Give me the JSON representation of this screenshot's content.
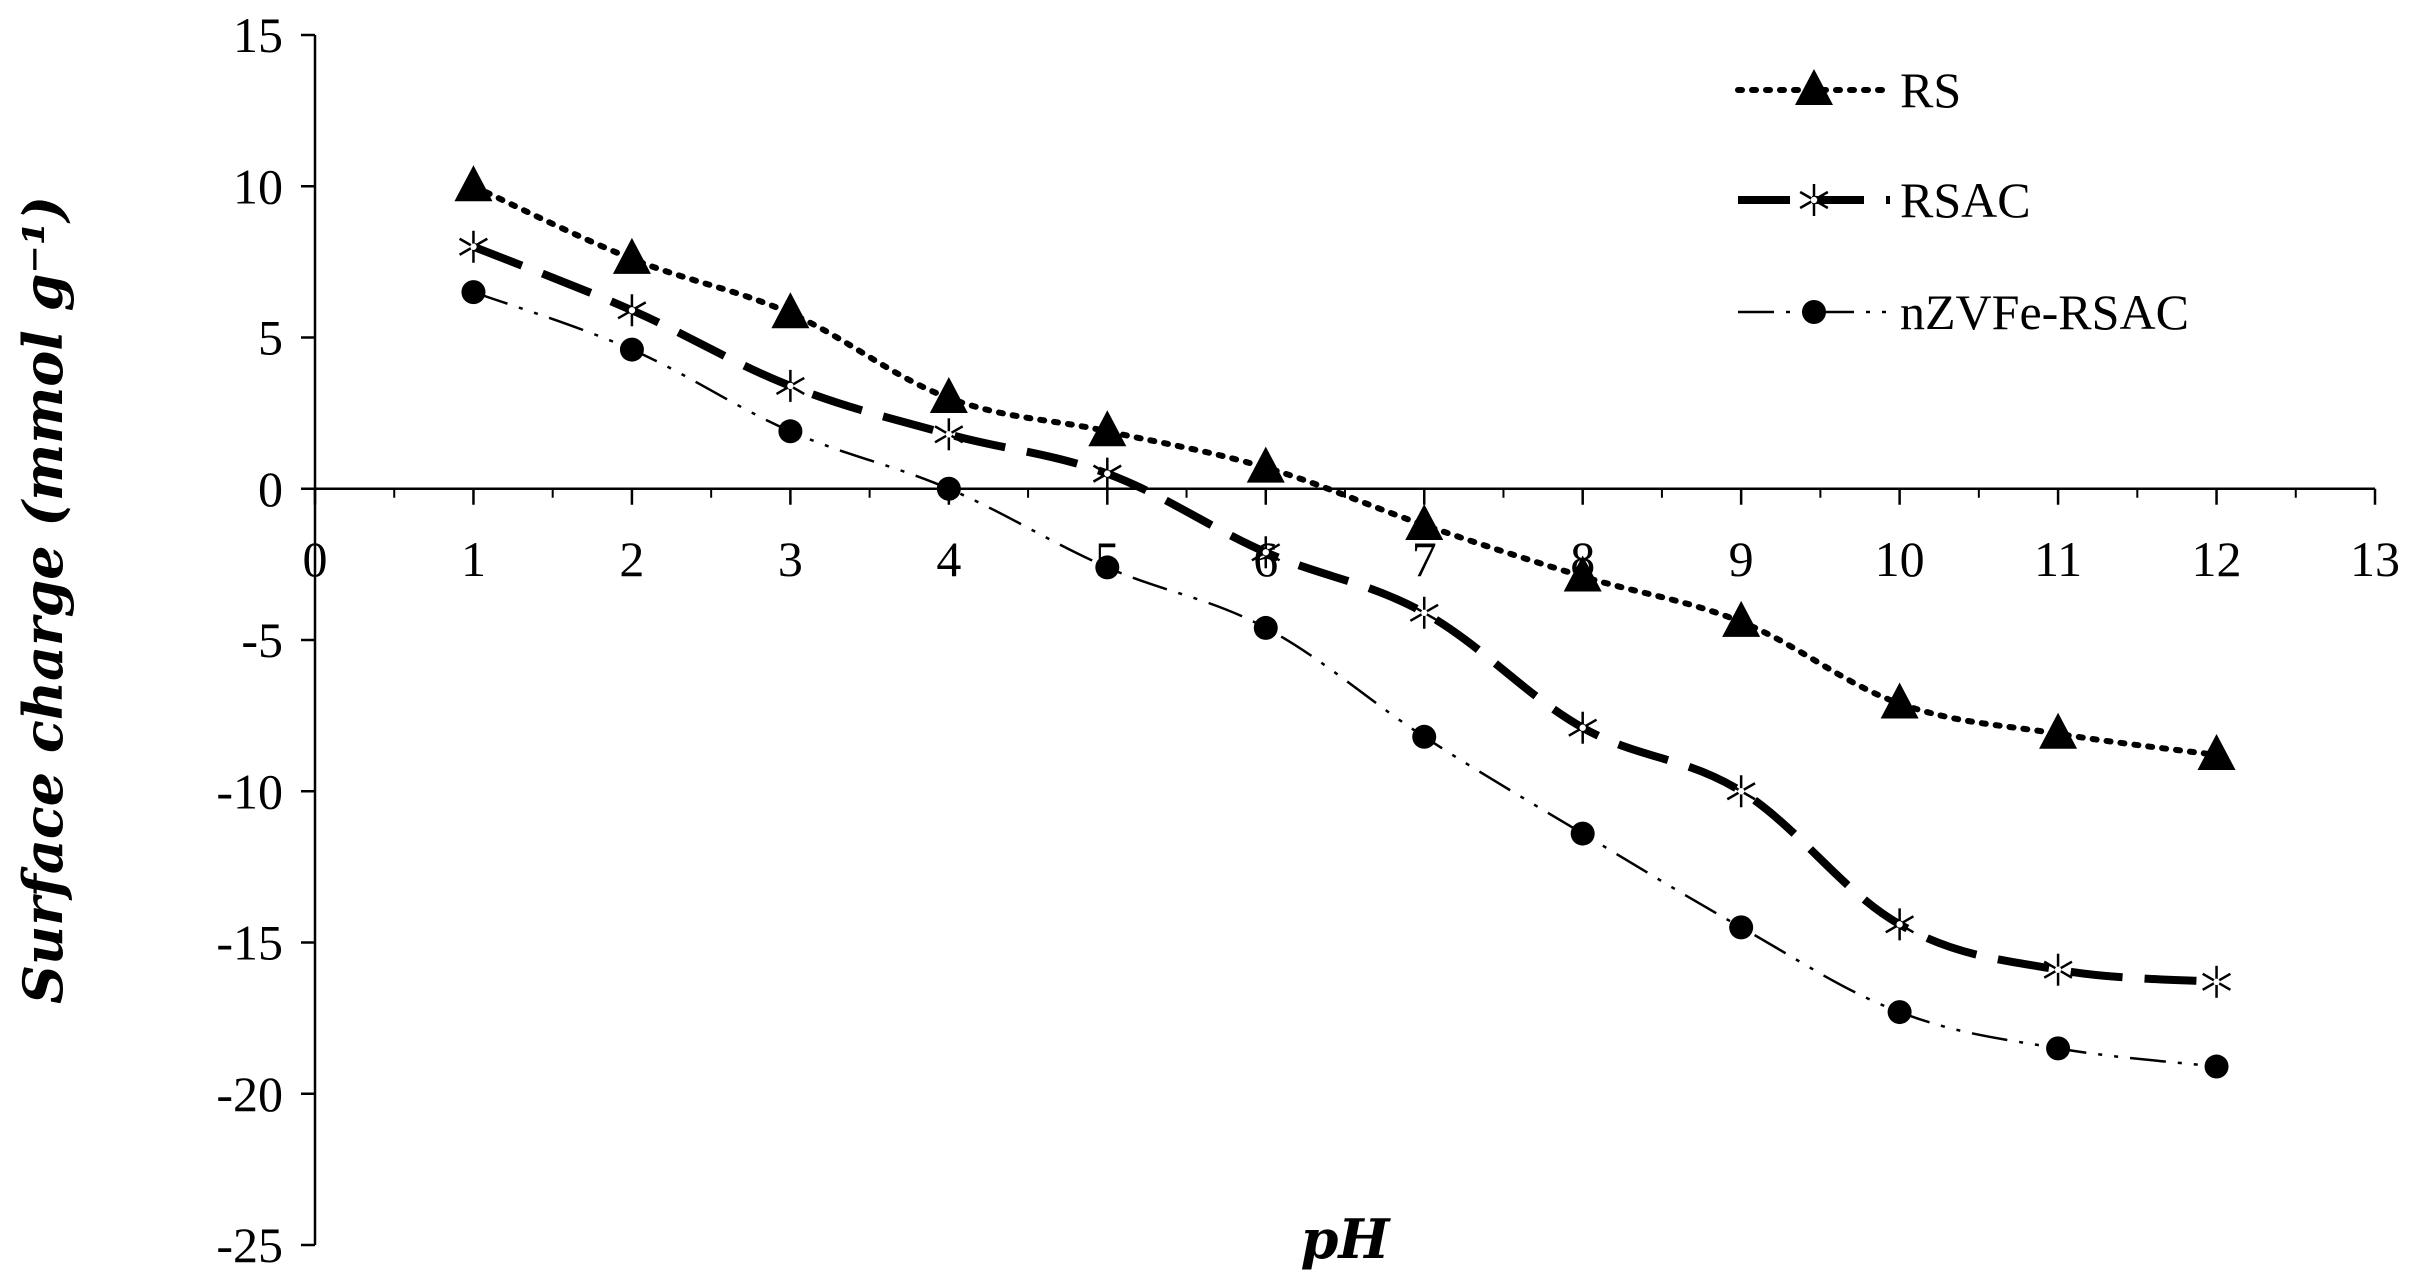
{
  "chart_data": {
    "type": "line",
    "title": "",
    "xlabel": "pH",
    "ylabel": "Surface charge (mmol g⁻¹)",
    "xlim": [
      0,
      13
    ],
    "ylim": [
      -25,
      15
    ],
    "x_ticks": [
      0,
      1,
      2,
      3,
      4,
      5,
      6,
      7,
      8,
      9,
      10,
      11,
      12,
      13
    ],
    "y_ticks": [
      15,
      10,
      5,
      0,
      -5,
      -10,
      -15,
      -20,
      -25
    ],
    "grid": false,
    "legend_position": "top-right",
    "x": [
      1,
      2,
      3,
      4,
      5,
      6,
      7,
      8,
      9,
      10,
      11,
      12
    ],
    "series": [
      {
        "name": "RS",
        "marker": "triangle",
        "line_style": "dotted",
        "color": "#000000",
        "values": [
          10,
          7.6,
          5.8,
          3.0,
          1.9,
          0.7,
          -1.2,
          -2.9,
          -4.4,
          -7.1,
          -8.1,
          -8.8
        ]
      },
      {
        "name": "RSAC",
        "marker": "asterisk",
        "line_style": "long-dash",
        "color": "#000000",
        "values": [
          8.0,
          5.9,
          3.4,
          1.8,
          0.5,
          -2.1,
          -4.1,
          -7.9,
          -10.0,
          -14.4,
          -15.9,
          -16.3
        ]
      },
      {
        "name": "nZVFe-RSAC",
        "marker": "circle",
        "line_style": "dash-dot-dot",
        "color": "#000000",
        "values": [
          6.5,
          4.6,
          1.9,
          0.0,
          -2.6,
          -4.6,
          -8.2,
          -11.4,
          -14.5,
          -17.3,
          -18.5,
          -19.1
        ]
      }
    ]
  }
}
